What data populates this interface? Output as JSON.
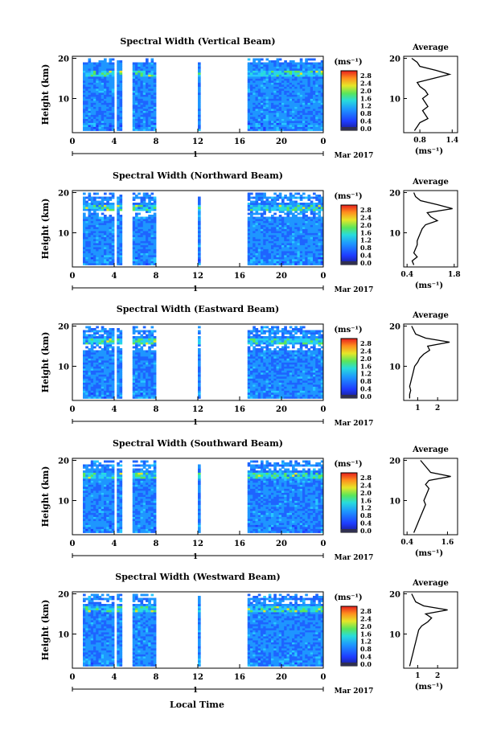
{
  "figure": {
    "date_label": "Mar 2017",
    "day_label": "1",
    "xlabel": "Local Time",
    "ylabel": "Height (km)",
    "colorbar_unit": "(ms⁻¹)",
    "avg_title": "Average",
    "avg_xlabel": "(ms⁻¹)"
  },
  "chart_data": [
    {
      "type": "heatmap",
      "title": "Spectral Width (Vertical Beam)",
      "xlabel": "Local Time",
      "ylabel": "Height (km)",
      "x_ticks": [
        "0",
        "4",
        "8",
        "12",
        "16",
        "20",
        "0"
      ],
      "y_ticks": [
        "10",
        "20"
      ],
      "xlim": [
        0,
        24
      ],
      "ylim": [
        1.5,
        20.5
      ],
      "colorbar": {
        "label": "(ms⁻¹)",
        "range": [
          0,
          3
        ],
        "ticks": [
          "0.0",
          "0.4",
          "0.8",
          "1.2",
          "1.6",
          "2.0",
          "2.4",
          "2.8"
        ]
      },
      "data_gaps_hours": [
        [
          0,
          0.9
        ],
        [
          3.9,
          4.2
        ],
        [
          4.7,
          5.8
        ],
        [
          8,
          12.1
        ],
        [
          12.3,
          16.7
        ],
        [
          24,
          24
        ]
      ],
      "average_profile": {
        "xlim": [
          0.5,
          1.5
        ],
        "x_ticks": [
          "0.8",
          "1.4"
        ],
        "xlabel": "(ms⁻¹)",
        "height_km": [
          2,
          3,
          4,
          5,
          6,
          7,
          8,
          9,
          10,
          11,
          12,
          13,
          14,
          15,
          16,
          17,
          18,
          19,
          20
        ],
        "values": [
          0.7,
          0.75,
          0.8,
          0.95,
          0.9,
          0.85,
          0.95,
          0.9,
          0.85,
          0.95,
          0.9,
          0.8,
          0.75,
          1.05,
          1.35,
          1.1,
          0.8,
          0.75,
          0.65
        ]
      }
    },
    {
      "type": "heatmap",
      "title": "Spectral Width (Northward Beam)",
      "xlabel": "Local Time",
      "ylabel": "Height (km)",
      "x_ticks": [
        "0",
        "4",
        "8",
        "12",
        "16",
        "20",
        "0"
      ],
      "y_ticks": [
        "10",
        "20"
      ],
      "xlim": [
        0,
        24
      ],
      "ylim": [
        1.5,
        20.5
      ],
      "colorbar": {
        "label": "(ms⁻¹)",
        "range": [
          0,
          3
        ],
        "ticks": [
          "0.0",
          "0.4",
          "0.8",
          "1.2",
          "1.6",
          "2.0",
          "2.4",
          "2.8"
        ]
      },
      "data_gaps_hours": [
        [
          0,
          0.9
        ],
        [
          3.9,
          4.2
        ],
        [
          4.7,
          5.8
        ],
        [
          8,
          12.1
        ],
        [
          12.3,
          16.7
        ],
        [
          24,
          24
        ]
      ],
      "average_profile": {
        "xlim": [
          0.3,
          1.9
        ],
        "x_ticks": [
          "0.4",
          "1.8"
        ],
        "xlabel": "(ms⁻¹)",
        "height_km": [
          2,
          3,
          4,
          5,
          6,
          7,
          8,
          9,
          10,
          11,
          12,
          13,
          14,
          15,
          16,
          17,
          18,
          19,
          20
        ],
        "values": [
          0.6,
          0.55,
          0.7,
          0.6,
          0.65,
          0.7,
          0.7,
          0.75,
          0.8,
          0.85,
          0.95,
          1.3,
          1.1,
          1.0,
          1.75,
          1.3,
          0.8,
          0.65,
          0.6
        ]
      }
    },
    {
      "type": "heatmap",
      "title": "Spectral Width (Eastward Beam)",
      "xlabel": "Local Time",
      "ylabel": "Height (km)",
      "x_ticks": [
        "0",
        "4",
        "8",
        "12",
        "16",
        "20",
        "0"
      ],
      "y_ticks": [
        "10",
        "20"
      ],
      "xlim": [
        0,
        24
      ],
      "ylim": [
        1.5,
        20.5
      ],
      "colorbar": {
        "label": "(ms⁻¹)",
        "range": [
          0,
          3
        ],
        "ticks": [
          "0.0",
          "0.4",
          "0.8",
          "1.2",
          "1.6",
          "2.0",
          "2.4",
          "2.8"
        ]
      },
      "data_gaps_hours": [
        [
          0,
          0.9
        ],
        [
          3.9,
          4.2
        ],
        [
          4.7,
          5.8
        ],
        [
          8,
          12.1
        ],
        [
          12.3,
          16.7
        ],
        [
          24,
          24
        ]
      ],
      "average_profile": {
        "xlim": [
          0.3,
          3.0
        ],
        "x_ticks": [
          "1",
          "2"
        ],
        "xlabel": "",
        "height_km": [
          2,
          3,
          4,
          5,
          6,
          7,
          8,
          9,
          10,
          11,
          12,
          13,
          14,
          15,
          16,
          17,
          18,
          19,
          20
        ],
        "values": [
          0.6,
          0.6,
          0.65,
          0.6,
          0.65,
          0.7,
          0.75,
          0.8,
          0.85,
          1.0,
          1.1,
          1.3,
          1.6,
          1.5,
          2.6,
          1.4,
          0.9,
          0.8,
          0.7
        ]
      }
    },
    {
      "type": "heatmap",
      "title": "Spectral Width (Southward Beam)",
      "xlabel": "Local Time",
      "ylabel": "Height (km)",
      "x_ticks": [
        "0",
        "4",
        "8",
        "12",
        "16",
        "20",
        "0"
      ],
      "y_ticks": [
        "10",
        "20"
      ],
      "xlim": [
        0,
        24
      ],
      "ylim": [
        1.5,
        20.5
      ],
      "colorbar": {
        "label": "(ms⁻¹)",
        "range": [
          0,
          3
        ],
        "ticks": [
          "0.0",
          "0.4",
          "0.8",
          "1.2",
          "1.6",
          "2.0",
          "2.4",
          "2.8"
        ]
      },
      "data_gaps_hours": [
        [
          0,
          0.9
        ],
        [
          3.9,
          4.2
        ],
        [
          4.7,
          5.8
        ],
        [
          8,
          12.1
        ],
        [
          12.3,
          16.7
        ],
        [
          24,
          24
        ]
      ],
      "average_profile": {
        "xlim": [
          0.3,
          1.9
        ],
        "x_ticks": [
          "0.4",
          "1.6"
        ],
        "xlabel": "(ms⁻¹)",
        "height_km": [
          2,
          3,
          4,
          5,
          6,
          7,
          8,
          9,
          10,
          11,
          12,
          13,
          14,
          15,
          16,
          17,
          18,
          19,
          20
        ],
        "values": [
          0.6,
          0.65,
          0.7,
          0.75,
          0.8,
          0.85,
          0.9,
          0.95,
          0.9,
          0.95,
          1.0,
          1.05,
          0.95,
          1.05,
          1.7,
          1.1,
          1.0,
          0.9,
          0.8
        ]
      }
    },
    {
      "type": "heatmap",
      "title": "Spectral Width (Westward Beam)",
      "xlabel": "Local Time",
      "ylabel": "Height (km)",
      "x_ticks": [
        "0",
        "4",
        "8",
        "12",
        "16",
        "20",
        "0"
      ],
      "y_ticks": [
        "10",
        "20"
      ],
      "xlim": [
        0,
        24
      ],
      "ylim": [
        1.5,
        20.5
      ],
      "colorbar": {
        "label": "(ms⁻¹)",
        "range": [
          0,
          3
        ],
        "ticks": [
          "0.0",
          "0.4",
          "0.8",
          "1.2",
          "1.6",
          "2.0",
          "2.4",
          "2.8"
        ]
      },
      "data_gaps_hours": [
        [
          0,
          0.9
        ],
        [
          3.9,
          4.2
        ],
        [
          4.7,
          5.8
        ],
        [
          8,
          12.1
        ],
        [
          12.3,
          16.7
        ],
        [
          24,
          24
        ]
      ],
      "average_profile": {
        "xlim": [
          0.3,
          3.0
        ],
        "x_ticks": [
          "1",
          "2"
        ],
        "xlabel": "(ms⁻¹)",
        "height_km": [
          2,
          3,
          4,
          5,
          6,
          7,
          8,
          9,
          10,
          11,
          12,
          13,
          14,
          15,
          16,
          17,
          18,
          19,
          20
        ],
        "values": [
          0.6,
          0.65,
          0.7,
          0.75,
          0.8,
          0.85,
          0.9,
          0.95,
          1.0,
          1.05,
          1.2,
          1.5,
          1.7,
          1.4,
          2.5,
          1.3,
          0.9,
          0.8,
          0.7
        ]
      }
    }
  ]
}
